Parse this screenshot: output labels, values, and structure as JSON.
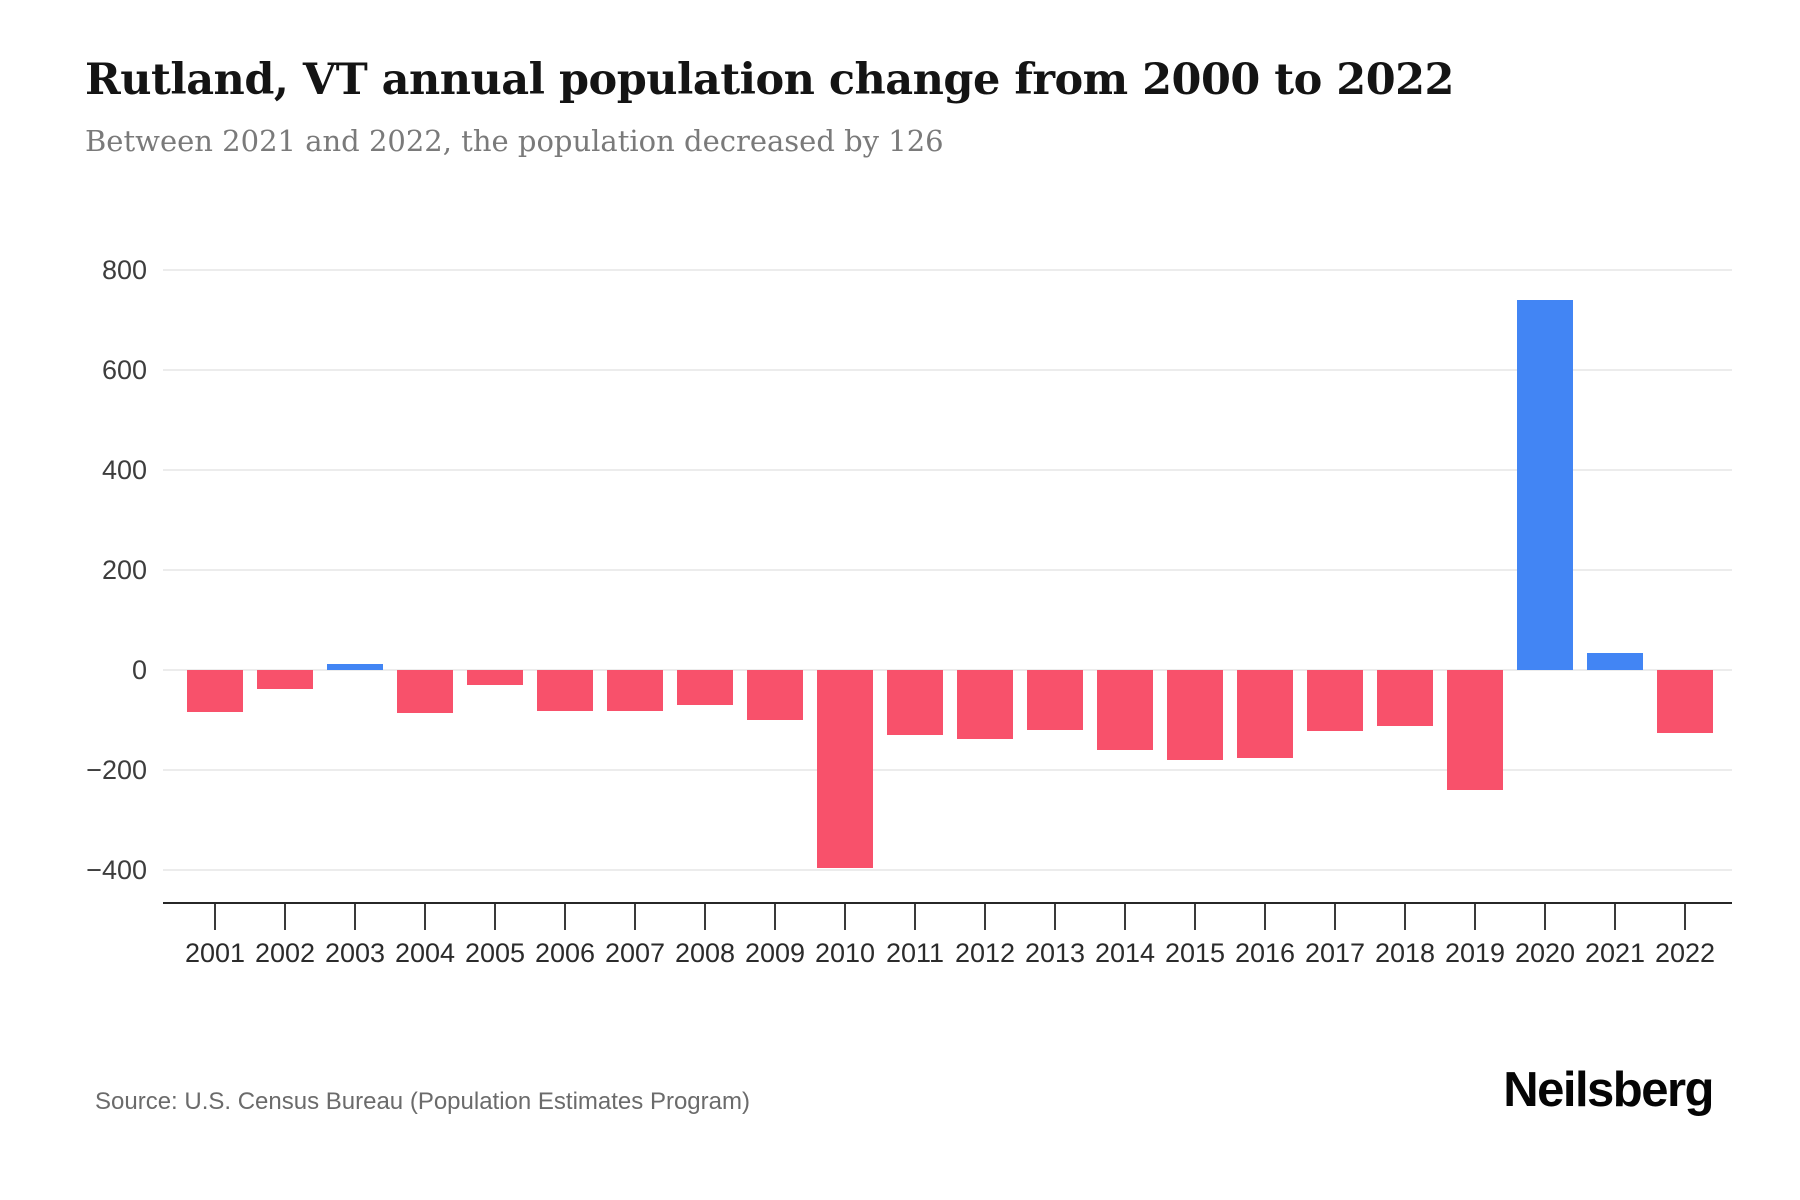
{
  "header": {
    "title": "Rutland, VT annual population change from 2000 to 2022",
    "subtitle": "Between 2021 and 2022, the population decreased by 126"
  },
  "footer": {
    "source": "Source: U.S. Census Bureau (Population Estimates Program)",
    "brand": "Neilsberg"
  },
  "chart_data": {
    "type": "bar",
    "title": "Rutland, VT annual population change from 2000 to 2022",
    "xlabel": "",
    "ylabel": "",
    "categories": [
      "2001",
      "2002",
      "2003",
      "2004",
      "2005",
      "2006",
      "2007",
      "2008",
      "2009",
      "2010",
      "2011",
      "2012",
      "2013",
      "2014",
      "2015",
      "2016",
      "2017",
      "2018",
      "2019",
      "2020",
      "2021",
      "2022"
    ],
    "values": [
      -83,
      -38,
      12,
      -86,
      -30,
      -81,
      -81,
      -70,
      -100,
      -395,
      -130,
      -137,
      -120,
      -160,
      -180,
      -175,
      -122,
      -112,
      -240,
      740,
      35,
      -126
    ],
    "yticks": [
      800,
      600,
      400,
      200,
      0,
      -200,
      -400
    ],
    "ylim": [
      -464,
      880
    ],
    "grid": true,
    "legend": false,
    "colors": {
      "positive": "#4285f4",
      "negative": "#f8516b"
    },
    "grid_color": "#ececec",
    "axis_color": "#272727"
  }
}
